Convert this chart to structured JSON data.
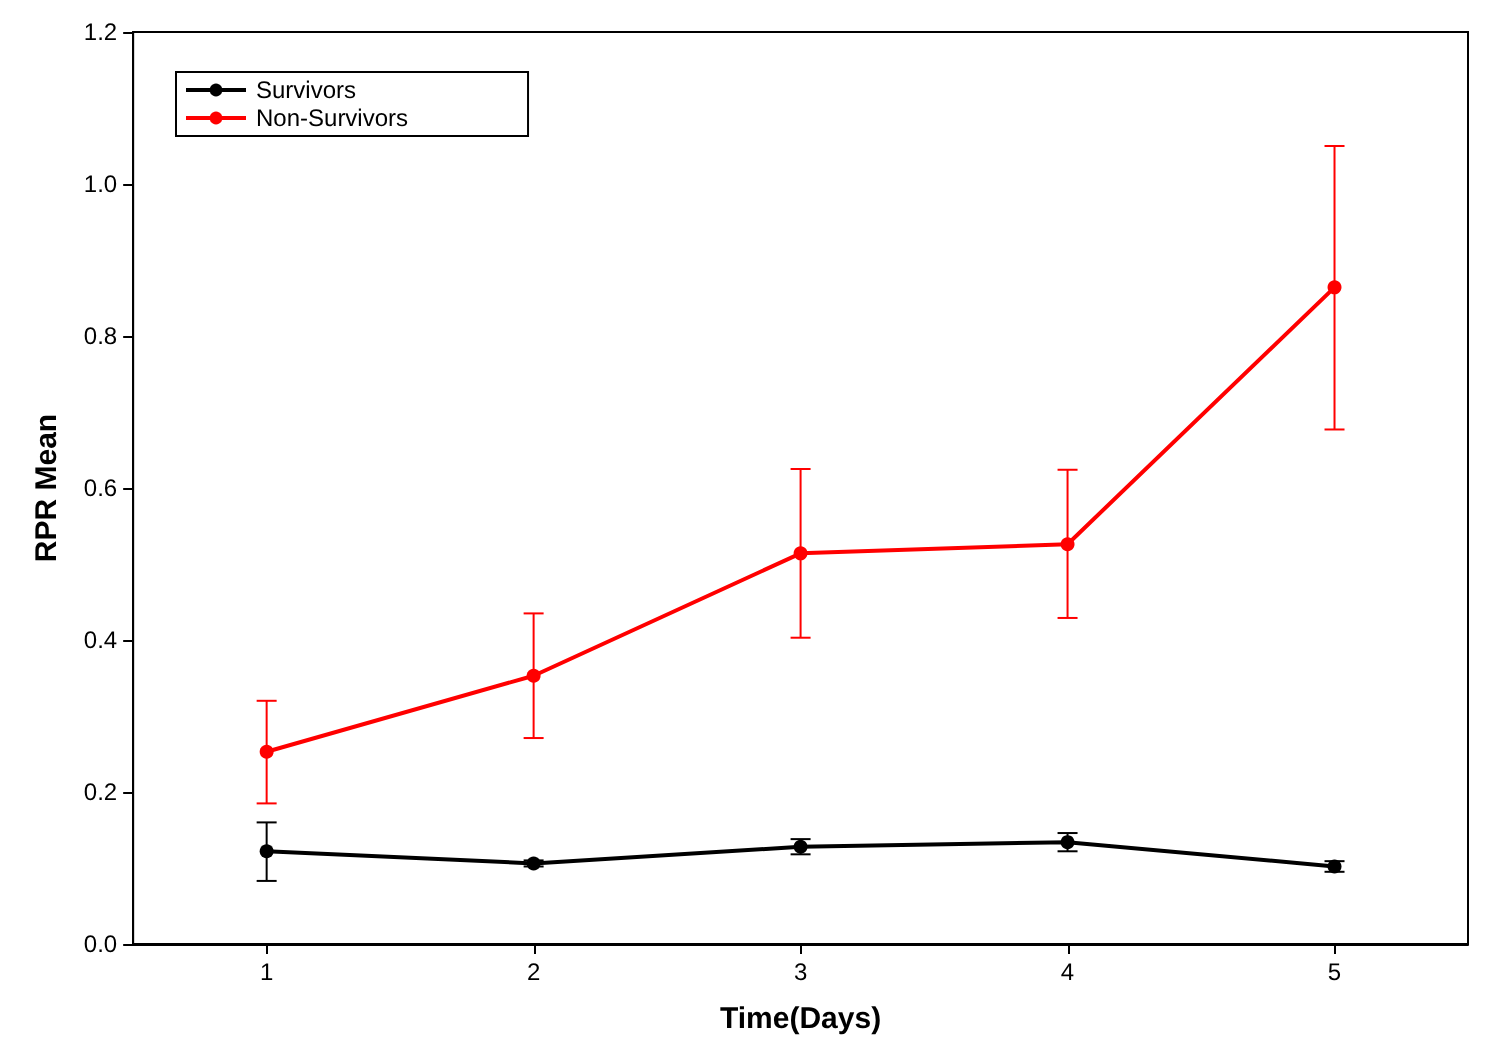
{
  "chart_data": {
    "type": "line",
    "xlabel": "Time(Days)",
    "ylabel": "RPR Mean",
    "x": [
      1,
      2,
      3,
      4,
      5
    ],
    "series": [
      {
        "name": "Survivors",
        "color": "#000000",
        "values": [
          0.122,
          0.106,
          0.128,
          0.134,
          0.102
        ],
        "errors": [
          [
            0.083,
            0.16
          ],
          [
            0.102,
            0.11
          ],
          [
            0.118,
            0.138
          ],
          [
            0.122,
            0.146
          ],
          [
            0.095,
            0.109
          ]
        ]
      },
      {
        "name": "Non-Survivors",
        "color": "#ff0000",
        "values": [
          0.253,
          0.353,
          0.514,
          0.526,
          0.864
        ],
        "errors": [
          [
            0.185,
            0.32
          ],
          [
            0.271,
            0.435
          ],
          [
            0.403,
            0.625
          ],
          [
            0.429,
            0.624
          ],
          [
            0.677,
            1.05
          ]
        ]
      }
    ],
    "xlim": [
      0.5,
      5.5
    ],
    "xticks": [
      1,
      2,
      3,
      4,
      5
    ],
    "ylim": [
      0,
      1.2
    ],
    "yticks": [
      {
        "value": 0,
        "label": "0.0"
      },
      0.2,
      0.4,
      0.6,
      0.8,
      {
        "value": 1,
        "label": "1.0"
      },
      1.2
    ],
    "grid": false,
    "legend": "top left",
    "marker": "circle",
    "line_style": "solid"
  }
}
